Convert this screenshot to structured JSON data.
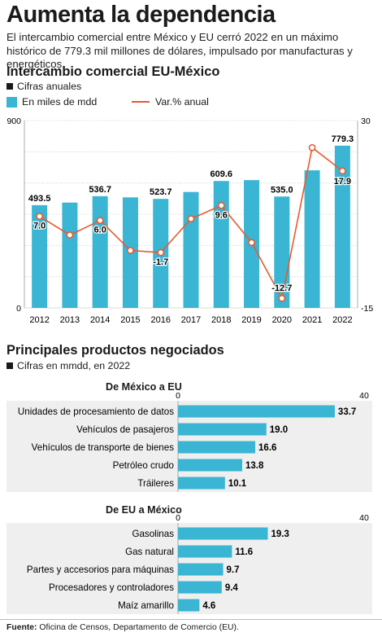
{
  "header": {
    "title": "Aumenta la dependencia",
    "subtitle": "El intercambio comercial entre México y EU cerró 2022 en un máximo histórico de 779.3 mil millones de dólares, impulsado por manufacturas y energéticos."
  },
  "trade_section": {
    "title": "Intercambio comercial EU-México",
    "note": "Cifras anuales",
    "legend_bar": "En miles de mdd",
    "legend_line": "Var.% anual"
  },
  "products_section": {
    "title": "Principales productos negociados",
    "note": "Cifras en mmdd, en 2022",
    "panel1_title": "De México a EU",
    "panel2_title": "De EU a México"
  },
  "source": {
    "label": "Fuente:",
    "text": " Oficina de Censos, Departamento de Comercio (EU)."
  },
  "colors": {
    "bar": "#3ab5d3",
    "line": "#e85a2e",
    "text": "#1a1a1a",
    "shade": "#efefef"
  },
  "chart_data": [
    {
      "type": "bar",
      "categories": [
        "2012",
        "2013",
        "2014",
        "2015",
        "2016",
        "2017",
        "2018",
        "2019",
        "2020",
        "2021",
        "2022"
      ],
      "series": [
        {
          "values": [
            493.5,
            506.0,
            536.7,
            531.0,
            523.7,
            557.0,
            609.6,
            614.0,
            535.0,
            661.0,
            779.3
          ],
          "labels": [
            "493.5",
            "",
            "536.7",
            "",
            "523.7",
            "",
            "609.6",
            "",
            "535.0",
            "",
            "779.3"
          ]
        }
      ],
      "ylim": [
        0,
        900
      ],
      "yticks": [
        "0",
        "900"
      ],
      "grid": true
    },
    {
      "type": "line",
      "categories": [
        "2012",
        "2013",
        "2014",
        "2015",
        "2016",
        "2017",
        "2018",
        "2019",
        "2020",
        "2021",
        "2022"
      ],
      "series": [
        {
          "values": [
            7.0,
            2.5,
            6.0,
            -1.2,
            -1.7,
            6.4,
            9.6,
            0.7,
            -12.7,
            23.5,
            17.9
          ],
          "labels": [
            "7.0",
            "",
            "6.0",
            "",
            "-1.7",
            "",
            "9.6",
            "",
            "-12.7",
            "",
            "17.9"
          ]
        }
      ],
      "ylim": [
        -15,
        30
      ],
      "yticks": [
        "30",
        "-15"
      ]
    },
    {
      "type": "bar",
      "orientation": "horizontal",
      "title": "De México a EU",
      "categories": [
        "Unidades de procesamiento de datos",
        "Vehículos de pasajeros",
        "Vehículos de transporte de bienes",
        "Petróleo crudo",
        "Tráileres"
      ],
      "values": [
        33.7,
        19.0,
        16.6,
        13.8,
        10.1
      ],
      "labels": [
        "33.7",
        "19.0",
        "16.6",
        "13.8",
        "10.1"
      ],
      "xlim": [
        0,
        40
      ],
      "xticks": [
        "0",
        "40"
      ]
    },
    {
      "type": "bar",
      "orientation": "horizontal",
      "title": "De EU a México",
      "categories": [
        "Gasolinas",
        "Gas natural",
        "Partes y accesorios para máquinas",
        "Procesadores y controladores",
        "Maíz amarillo"
      ],
      "values": [
        19.3,
        11.6,
        9.7,
        9.4,
        4.6
      ],
      "labels": [
        "19.3",
        "11.6",
        "9.7",
        "9.4",
        "4.6"
      ],
      "xlim": [
        0,
        40
      ],
      "xticks": [
        "0",
        "40"
      ]
    }
  ]
}
